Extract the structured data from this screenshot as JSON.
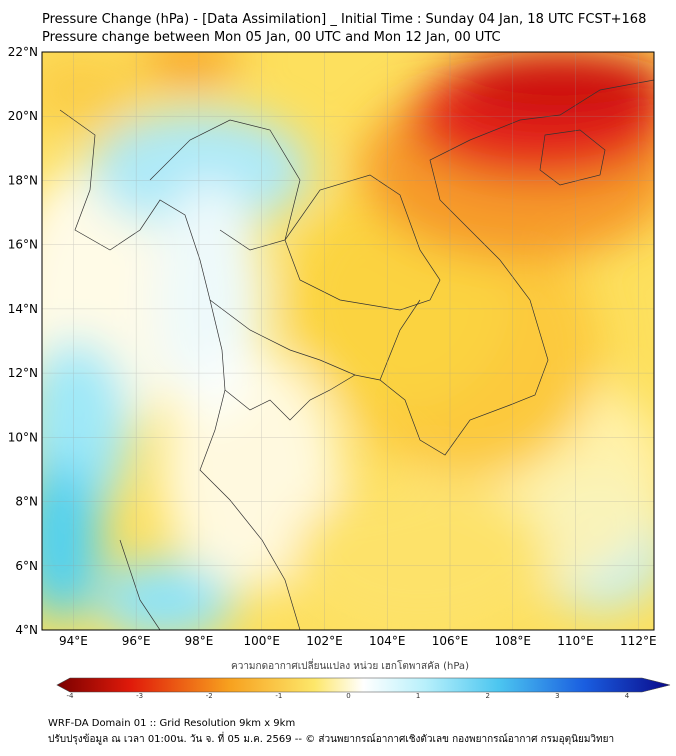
{
  "title": {
    "line1": "Pressure Change (hPa) - [Data Assimilation] _ Initial Time : Sunday 04 Jan, 18 UTC FCST+168",
    "line2": "Pressure change between Mon 05 Jan, 00 UTC and Mon 12 Jan, 00 UTC"
  },
  "map": {
    "lat_range": [
      4,
      22
    ],
    "lon_range": [
      93,
      112.5
    ],
    "lat_labels": [
      "22°N",
      "20°N",
      "18°N",
      "16°N",
      "14°N",
      "12°N",
      "10°N",
      "8°N",
      "6°N",
      "4°N"
    ],
    "lon_labels": [
      "94°E",
      "96°E",
      "98°E",
      "100°E",
      "102°E",
      "104°E",
      "106°E",
      "108°E",
      "110°E",
      "112°E"
    ],
    "gridlines": true
  },
  "colorbar": {
    "label": "ความกดอากาศเปลี่ยนแปลง หน่วย เฮกโตพาสคัล (hPa)",
    "ticks": [
      "-4",
      "-3",
      "-2",
      "-1",
      "0",
      "1",
      "2",
      "3",
      "4"
    ],
    "range": [
      -4,
      4
    ],
    "colors": {
      "min": "#7a0000",
      "strong_rise_neg": "#e01a0a",
      "neg_mid": "#f7a01e",
      "neg_low": "#fde76a",
      "zero": "#ffffff",
      "pos_low": "#b8f0fb",
      "pos_mid": "#4cc6f0",
      "pos_high": "#1a5ee0",
      "max": "#0a0a8a"
    }
  },
  "footer": {
    "line1": "WRF-DA Domain 01 :: Grid Resolution 9km x 9km",
    "line2": "ปรับปรุงข้อมูล ณ เวลา 01:00น. วัน จ. ที่ 05 ม.ค. 2569 -- © ส่วนพยากรณ์อากาศเชิงตัวเลข กองพยากรณ์อากาศ กรมอุตุนิยมวิทยา"
  }
}
